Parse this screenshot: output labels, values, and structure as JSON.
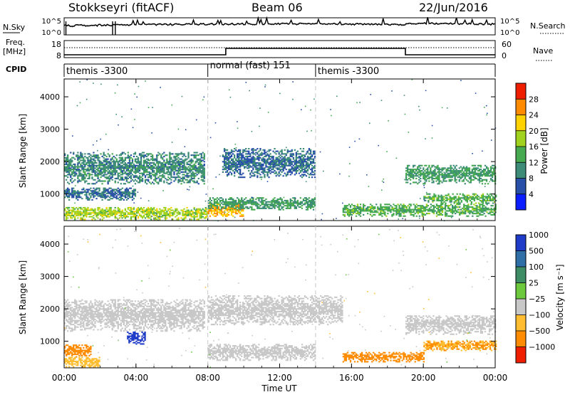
{
  "header": {
    "title": "Stokkseyri (fitACF)",
    "beam": "Beam 06",
    "date": "22/Jun/2016"
  },
  "status_panels": {
    "nsky": {
      "label": "N.Sky",
      "ticks": [
        "10^5",
        "10^0"
      ]
    },
    "nsearch": {
      "label": "N.Search",
      "ticks": [
        "10^5",
        "10^0"
      ]
    },
    "freq": {
      "label_line1": "Freq.",
      "label_line2": "[MHz]",
      "ticks": [
        "18",
        "8"
      ]
    },
    "nave": {
      "label": "Nave",
      "ticks": [
        "60",
        "0"
      ]
    },
    "cpid": {
      "label": "CPID",
      "segments": [
        {
          "name": "themis -3300",
          "start_hour": 0,
          "end_hour": 8
        },
        {
          "name": "normal (fast) 151",
          "start_hour": 8,
          "end_hour": 14
        },
        {
          "name": "themis -3300",
          "start_hour": 14,
          "end_hour": 24
        }
      ]
    },
    "freq_step_hours": [
      9.0,
      19.0
    ],
    "freq_levels_mhz": [
      10.5,
      12.0,
      10.5
    ]
  },
  "axes": {
    "time_label": "Time UT",
    "time_ticks": [
      "00:00",
      "04:00",
      "08:00",
      "12:00",
      "16:00",
      "20:00",
      "00:00"
    ],
    "time_tick_hours": [
      0,
      4,
      8,
      12,
      16,
      20,
      24
    ],
    "range_label": "Slant Range [km]",
    "range_ticks": [
      "1000",
      "2000",
      "3000",
      "4000"
    ],
    "range_tick_values": [
      1000,
      2000,
      3000,
      4000
    ],
    "range_lim_km": [
      180,
      4550
    ],
    "time_lim_hours": [
      0,
      24
    ],
    "dashed_lines_hours": [
      8,
      14
    ]
  },
  "power_colorbar": {
    "label": "Power [dB]",
    "ticks": [
      "4",
      "8",
      "12",
      "16",
      "20",
      "24",
      "28"
    ],
    "colors": [
      "#0a1eff",
      "#2850a8",
      "#3c8c78",
      "#46aa50",
      "#a0d21e",
      "#ffd200",
      "#ff8c00",
      "#f01e00"
    ]
  },
  "velocity_colorbar": {
    "label": "Velocity [m s⁻¹]",
    "ticks": [
      "1000",
      "500",
      "100",
      "25",
      "−25",
      "−100",
      "−500",
      "−1000"
    ],
    "colors": [
      "#1e3cc8",
      "#2f6fa8",
      "#3c8c64",
      "#6cc83c",
      "#c8c8c8",
      "#ffbe32",
      "#ff8c00",
      "#f01e00"
    ]
  },
  "chart_data": [
    {
      "type": "heatmap",
      "name": "Power",
      "xlabel": "Time UT",
      "ylabel": "Slant Range [km]",
      "xlim": [
        0,
        24
      ],
      "ylim": [
        180,
        4550
      ],
      "colorbar": "Power [dB]",
      "echo_regions": [
        {
          "t0": 0.0,
          "t1": 7.8,
          "r0": 1300,
          "r1": 2300,
          "value_db": 10
        },
        {
          "t0": 0.0,
          "t1": 4.0,
          "r0": 800,
          "r1": 1200,
          "value_db": 8
        },
        {
          "t0": 0.0,
          "t1": 8.0,
          "r0": 200,
          "r1": 600,
          "value_db": 18
        },
        {
          "t0": 8.8,
          "t1": 14.0,
          "r0": 1500,
          "r1": 2400,
          "value_db": 8
        },
        {
          "t0": 8.0,
          "t1": 10.0,
          "r0": 300,
          "r1": 700,
          "value_db": 24
        },
        {
          "t0": 8.0,
          "t1": 14.0,
          "r0": 500,
          "r1": 900,
          "value_db": 12
        },
        {
          "t0": 15.5,
          "t1": 24.0,
          "r0": 300,
          "r1": 700,
          "value_db": 14
        },
        {
          "t0": 19.0,
          "t1": 24.0,
          "r0": 1300,
          "r1": 1900,
          "value_db": 12
        },
        {
          "t0": 20.0,
          "t1": 24.0,
          "r0": 700,
          "r1": 1000,
          "value_db": 14
        }
      ]
    },
    {
      "type": "heatmap",
      "name": "Velocity",
      "xlabel": "Time UT",
      "ylabel": "Slant Range [km]",
      "xlim": [
        0,
        24
      ],
      "ylim": [
        180,
        4550
      ],
      "colorbar": "Velocity [m s⁻¹]",
      "echo_regions": [
        {
          "t0": 0.0,
          "t1": 7.8,
          "r0": 1300,
          "r1": 2300,
          "value_ms": 0
        },
        {
          "t0": 3.5,
          "t1": 4.5,
          "r0": 900,
          "r1": 1300,
          "value_ms": 800
        },
        {
          "t0": 0.0,
          "t1": 1.5,
          "r0": 500,
          "r1": 900,
          "value_ms": -400
        },
        {
          "t0": 0.0,
          "t1": 2.0,
          "r0": 200,
          "r1": 500,
          "value_ms": -80
        },
        {
          "t0": 8.0,
          "t1": 15.5,
          "r0": 1500,
          "r1": 2400,
          "value_ms": 0
        },
        {
          "t0": 8.0,
          "t1": 14.0,
          "r0": 400,
          "r1": 900,
          "value_ms": 0
        },
        {
          "t0": 15.5,
          "t1": 20.0,
          "r0": 350,
          "r1": 650,
          "value_ms": -400
        },
        {
          "t0": 19.0,
          "t1": 24.0,
          "r0": 1200,
          "r1": 1800,
          "value_ms": 0
        },
        {
          "t0": 20.0,
          "t1": 24.0,
          "r0": 700,
          "r1": 1000,
          "value_ms": -100
        }
      ]
    }
  ]
}
